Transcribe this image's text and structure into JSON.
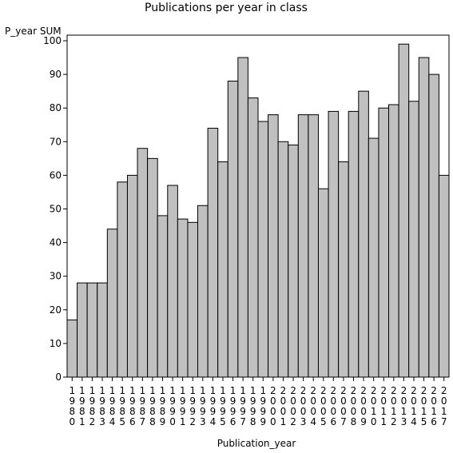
{
  "chart_data": {
    "type": "bar",
    "title": "Publications per year in class",
    "ylabel": "P_year SUM",
    "xlabel": "Publication_year",
    "ylim": [
      0,
      100
    ],
    "yticks": [
      0,
      10,
      20,
      30,
      40,
      50,
      60,
      70,
      80,
      90,
      100
    ],
    "grid": false,
    "bar_color": "#c0c0c0",
    "categories": [
      "1980",
      "1981",
      "1982",
      "1983",
      "1984",
      "1985",
      "1986",
      "1987",
      "1988",
      "1989",
      "1990",
      "1991",
      "1992",
      "1993",
      "1994",
      "1995",
      "1996",
      "1997",
      "1998",
      "1999",
      "2000",
      "2001",
      "2002",
      "2003",
      "2004",
      "2005",
      "2006",
      "2007",
      "2008",
      "2009",
      "2010",
      "2011",
      "2012",
      "2013",
      "2014",
      "2015",
      "2016",
      "2017"
    ],
    "values": [
      17,
      28,
      28,
      28,
      44,
      58,
      60,
      68,
      65,
      48,
      57,
      47,
      46,
      51,
      74,
      64,
      88,
      95,
      83,
      76,
      78,
      70,
      69,
      78,
      78,
      56,
      79,
      64,
      79,
      85,
      71,
      80,
      81,
      99,
      82,
      95,
      90,
      60
    ]
  }
}
